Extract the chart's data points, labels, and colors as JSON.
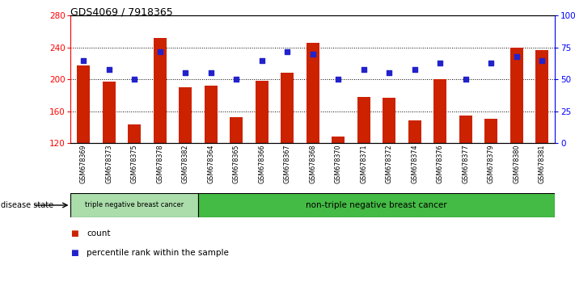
{
  "title": "GDS4069 / 7918365",
  "samples": [
    "GSM678369",
    "GSM678373",
    "GSM678375",
    "GSM678378",
    "GSM678382",
    "GSM678364",
    "GSM678365",
    "GSM678366",
    "GSM678367",
    "GSM678368",
    "GSM678370",
    "GSM678371",
    "GSM678372",
    "GSM678374",
    "GSM678376",
    "GSM678377",
    "GSM678379",
    "GSM678380",
    "GSM678381"
  ],
  "counts": [
    218,
    197,
    143,
    252,
    190,
    192,
    153,
    198,
    208,
    246,
    128,
    178,
    177,
    148,
    200,
    155,
    150,
    240,
    237
  ],
  "percentiles": [
    65,
    58,
    50,
    72,
    55,
    55,
    50,
    65,
    72,
    70,
    50,
    58,
    55,
    58,
    63,
    50,
    63,
    68,
    65
  ],
  "triple_neg_count": 5,
  "bar_color": "#CC2200",
  "dot_color": "#2222CC",
  "triple_neg_color": "#AADDAA",
  "non_triple_neg_color": "#44BB44",
  "xtick_bg_color": "#C8C8C8",
  "y_min": 120,
  "y_max": 280,
  "r_min": 0,
  "r_max": 100,
  "yticks_left": [
    120,
    160,
    200,
    240,
    280
  ],
  "yticks_right": [
    0,
    25,
    50,
    75,
    100
  ],
  "gridlines": [
    160,
    200,
    240
  ],
  "label_count": "count",
  "label_pct": "percentile rank within the sample",
  "disease_state_label": "disease state",
  "triple_neg_label": "triple negative breast cancer",
  "non_triple_neg_label": "non-triple negative breast cancer"
}
